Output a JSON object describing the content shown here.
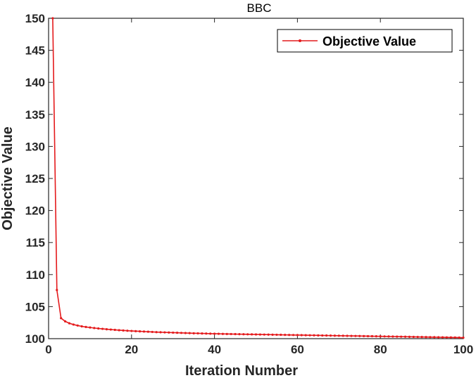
{
  "chart_data": {
    "type": "line",
    "title": "BBC",
    "xlabel": "Iteration Number",
    "ylabel": "Objective Value",
    "xlim": [
      0,
      100
    ],
    "ylim": [
      100,
      150
    ],
    "xticks": [
      0,
      20,
      40,
      60,
      80,
      100
    ],
    "yticks": [
      100,
      105,
      110,
      115,
      120,
      125,
      130,
      135,
      140,
      145,
      150
    ],
    "grid": false,
    "legend_position": "top-right",
    "series": [
      {
        "name": "Objective Value",
        "color": "#e41a1c",
        "marker": "dot",
        "x": [
          1,
          2,
          3,
          4,
          5,
          6,
          7,
          8,
          9,
          10,
          11,
          12,
          13,
          14,
          15,
          16,
          17,
          18,
          19,
          20,
          21,
          22,
          23,
          24,
          25,
          26,
          27,
          28,
          29,
          30,
          31,
          32,
          33,
          34,
          35,
          36,
          37,
          38,
          39,
          40,
          41,
          42,
          43,
          44,
          45,
          46,
          47,
          48,
          49,
          50,
          51,
          52,
          53,
          54,
          55,
          56,
          57,
          58,
          59,
          60,
          61,
          62,
          63,
          64,
          65,
          66,
          67,
          68,
          69,
          70,
          71,
          72,
          73,
          74,
          75,
          76,
          77,
          78,
          79,
          80,
          81,
          82,
          83,
          84,
          85,
          86,
          87,
          88,
          89,
          90,
          91,
          92,
          93,
          94,
          95,
          96,
          97,
          98,
          99,
          100
        ],
        "values": [
          150,
          107.6,
          103.2,
          102.7,
          102.4,
          102.2,
          102.05,
          101.92,
          101.82,
          101.74,
          101.66,
          101.59,
          101.53,
          101.47,
          101.42,
          101.37,
          101.32,
          101.28,
          101.24,
          101.2,
          101.17,
          101.14,
          101.11,
          101.08,
          101.05,
          101.02,
          101.0,
          100.98,
          100.96,
          100.94,
          100.92,
          100.9,
          100.88,
          100.86,
          100.84,
          100.83,
          100.81,
          100.8,
          100.78,
          100.77,
          100.76,
          100.74,
          100.73,
          100.72,
          100.71,
          100.7,
          100.69,
          100.68,
          100.67,
          100.66,
          100.65,
          100.64,
          100.63,
          100.62,
          100.61,
          100.6,
          100.59,
          100.58,
          100.57,
          100.56,
          100.55,
          100.54,
          100.53,
          100.52,
          100.51,
          100.5,
          100.49,
          100.48,
          100.47,
          100.46,
          100.45,
          100.44,
          100.43,
          100.42,
          100.41,
          100.4,
          100.39,
          100.38,
          100.37,
          100.36,
          100.35,
          100.34,
          100.33,
          100.32,
          100.31,
          100.3,
          100.29,
          100.28,
          100.27,
          100.26,
          100.25,
          100.24,
          100.23,
          100.22,
          100.21,
          100.2,
          100.19,
          100.18,
          100.17,
          100.16
        ]
      }
    ]
  }
}
